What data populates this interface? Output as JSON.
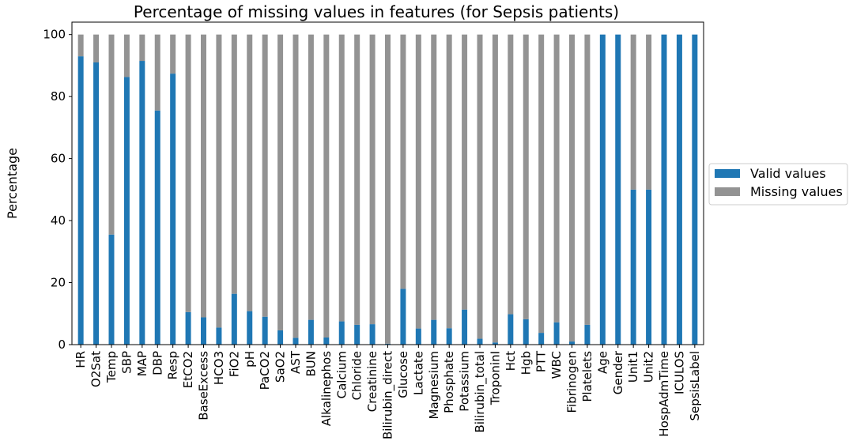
{
  "chart_data": {
    "type": "bar",
    "stacked": true,
    "title": "Percentage of missing values in features (for Sepsis patients)",
    "xlabel": "",
    "ylabel": "Percentage",
    "ylim": [
      0,
      104
    ],
    "yticks": [
      0,
      20,
      40,
      60,
      80,
      100
    ],
    "grid": false,
    "legend_position": "center-right, outside plot",
    "categories": [
      "HR",
      "O2Sat",
      "Temp",
      "SBP",
      "MAP",
      "DBP",
      "Resp",
      "EtCO2",
      "BaseExcess",
      "HCO3",
      "FiO2",
      "pH",
      "PaCO2",
      "SaO2",
      "AST",
      "BUN",
      "Alkalinephos",
      "Calcium",
      "Chloride",
      "Creatinine",
      "Bilirubin_direct",
      "Glucose",
      "Lactate",
      "Magnesium",
      "Phosphate",
      "Potassium",
      "Bilirubin_total",
      "TroponinI",
      "Hct",
      "Hgb",
      "PTT",
      "WBC",
      "Fibrinogen",
      "Platelets",
      "Age",
      "Gender",
      "Unit1",
      "Unit2",
      "HospAdmTime",
      "ICULOS",
      "SepsisLabel"
    ],
    "series": [
      {
        "name": "Valid values",
        "color": "#1f77b4",
        "values": [
          93.0,
          91.0,
          35.5,
          86.3,
          91.5,
          75.5,
          87.4,
          10.5,
          8.8,
          5.5,
          16.4,
          10.8,
          9.0,
          4.6,
          2.2,
          8.0,
          2.3,
          7.5,
          6.4,
          6.6,
          0.3,
          18.0,
          5.2,
          8.0,
          5.3,
          11.3,
          1.9,
          0.7,
          9.8,
          8.2,
          3.8,
          7.2,
          1.0,
          6.4,
          100,
          100,
          50,
          50,
          100,
          100,
          100
        ]
      },
      {
        "name": "Missing values",
        "color": "#939393",
        "values": [
          7.0,
          9.0,
          64.5,
          13.7,
          8.5,
          24.5,
          12.6,
          89.5,
          91.2,
          94.5,
          83.6,
          89.2,
          91.0,
          95.4,
          97.8,
          92.0,
          97.7,
          92.5,
          93.6,
          93.4,
          99.7,
          82.0,
          94.8,
          92.0,
          94.7,
          88.7,
          98.1,
          99.3,
          90.2,
          91.8,
          96.2,
          92.8,
          99.0,
          93.6,
          0,
          0,
          50,
          50,
          0,
          0,
          0
        ]
      }
    ]
  }
}
